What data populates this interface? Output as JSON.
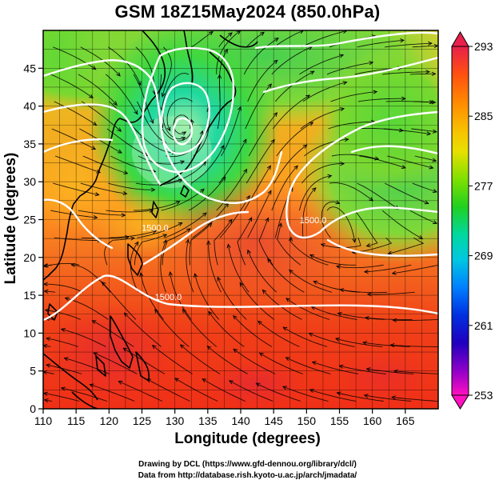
{
  "title": "GSM 18Z15May2024 (850.0hPa)",
  "xlabel": "Longitude (degrees)",
  "ylabel": "Latitude  (degrees)",
  "credits": {
    "line1": "Drawing by DCL (https://www.gfd-dennou.org/library/dcl/)",
    "line2": "Data from http://database.rish.kyoto-u.ac.jp/arch/jmadata/"
  },
  "map": {
    "lon_range": [
      110,
      170
    ],
    "lat_range": [
      0,
      50
    ],
    "lon_ticks": [
      110,
      115,
      120,
      125,
      130,
      135,
      140,
      145,
      150,
      155,
      160,
      165
    ],
    "lat_ticks": [
      0,
      5,
      10,
      15,
      20,
      25,
      30,
      35,
      40,
      45
    ],
    "contour_labels": [
      {
        "text": "1500.0",
        "lon": 129,
        "lat": 14.4
      },
      {
        "text": "1500.0",
        "lon": 151,
        "lat": 24.5
      },
      {
        "text": "1500.0",
        "lon": 127,
        "lat": 23.5
      }
    ]
  },
  "colorbar": {
    "ticks": [
      293,
      285,
      277,
      269,
      261,
      253
    ],
    "colors": [
      "#e8204a",
      "#ff6a00",
      "#ffb000",
      "#f0e000",
      "#9ae000",
      "#30d000",
      "#00d890",
      "#00d0d8",
      "#0090ff",
      "#0030e0",
      "#2800c0",
      "#8000c0",
      "#e000c0"
    ]
  }
}
